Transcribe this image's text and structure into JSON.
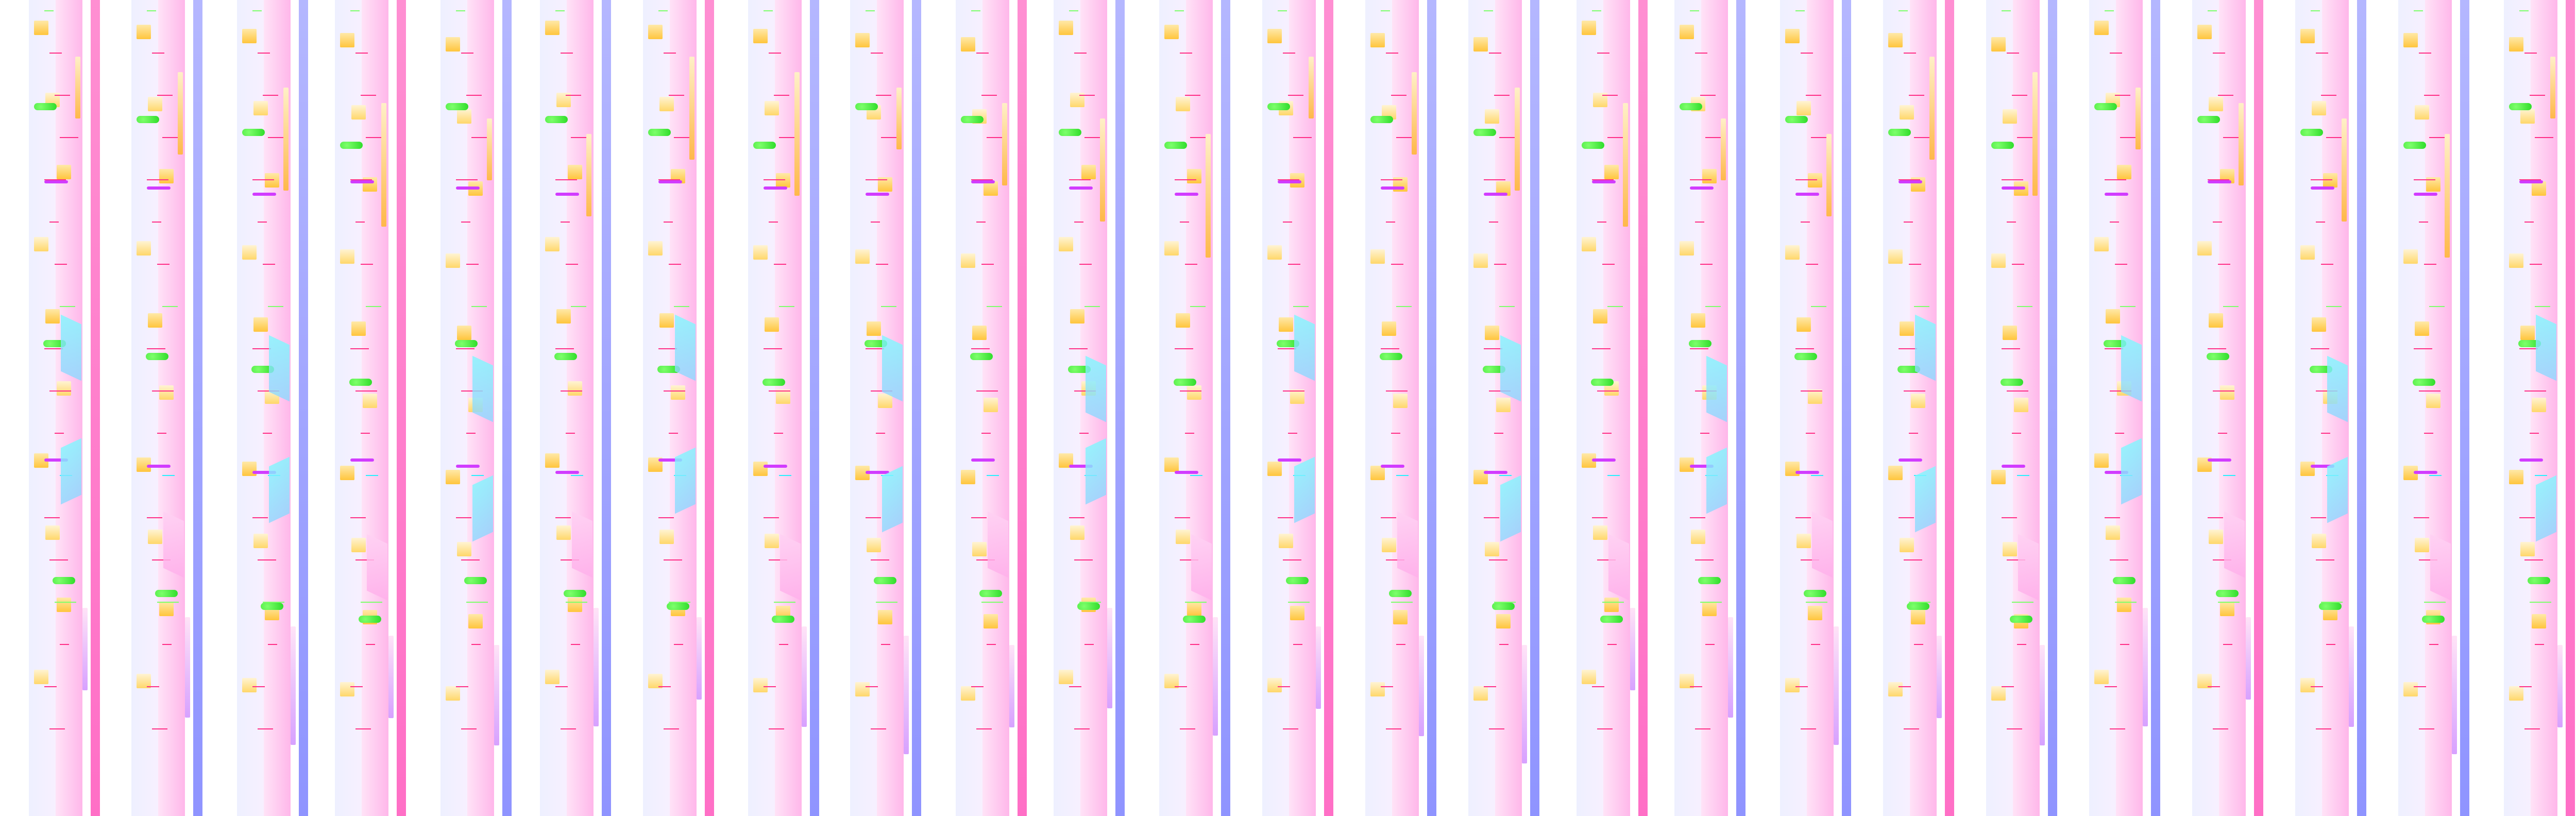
{
  "ui": {
    "columns": [
      {
        "key": "c01"
      },
      {
        "key": "c02"
      },
      {
        "key": "c03"
      },
      {
        "key": "c04"
      },
      {
        "key": "c05"
      },
      {
        "key": "c06"
      },
      {
        "key": "c07"
      },
      {
        "key": "c08"
      },
      {
        "key": "c09"
      },
      {
        "key": "c10"
      },
      {
        "key": "c11"
      },
      {
        "key": "c12"
      },
      {
        "key": "c13"
      },
      {
        "key": "c14"
      },
      {
        "key": "c15"
      },
      {
        "key": "c16"
      },
      {
        "key": "c17"
      },
      {
        "key": "c18"
      },
      {
        "key": "c19"
      },
      {
        "key": "c20"
      },
      {
        "key": "c21"
      },
      {
        "key": "c22"
      },
      {
        "key": "c23"
      },
      {
        "key": "c24"
      },
      {
        "key": "c25"
      },
      {
        "key": "c26"
      }
    ]
  }
}
